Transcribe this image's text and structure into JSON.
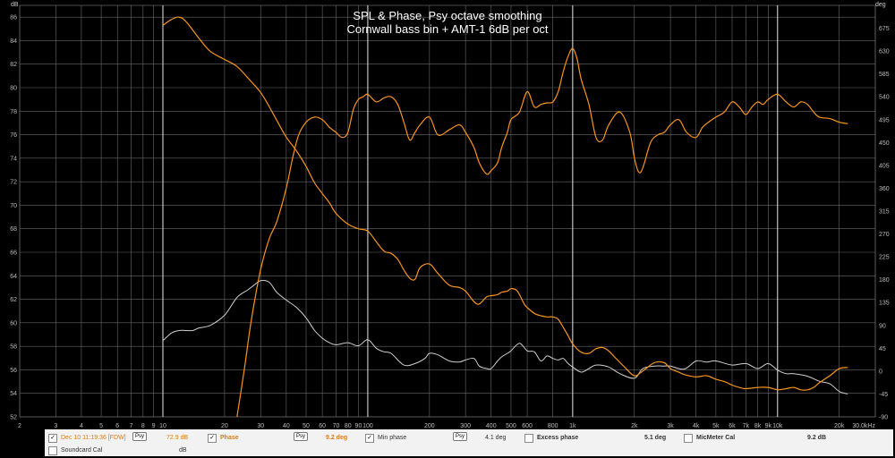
{
  "colors": {
    "spl": "#f7941d",
    "phase": "#f7941d",
    "min_phase": "#cfcfcf",
    "grid_major": "#e8e8e8",
    "grid_minor": "#6a6a6a",
    "bg": "#000000"
  },
  "chart_data": {
    "type": "line",
    "title": "SPL & Phase, Psy octave smoothing",
    "subtitle": "Cornwall bass bin + AMT-1 6dB per oct",
    "xlabel": "Hz",
    "ylabel_left": "dB",
    "ylabel_right": "deg",
    "x_scale": "log",
    "xlim": [
      2,
      30000
    ],
    "ylim_left": [
      52,
      87
    ],
    "ylim_right": [
      -90,
      720
    ],
    "x_ticks": [
      {
        "v": 2,
        "label": "2"
      },
      {
        "v": 3,
        "label": "3"
      },
      {
        "v": 4,
        "label": "4"
      },
      {
        "v": 5,
        "label": "5"
      },
      {
        "v": 6,
        "label": "6"
      },
      {
        "v": 7,
        "label": "7"
      },
      {
        "v": 8,
        "label": "8"
      },
      {
        "v": 9,
        "label": "9"
      },
      {
        "v": 10,
        "label": "10"
      },
      {
        "v": 20,
        "label": "20"
      },
      {
        "v": 30,
        "label": "30"
      },
      {
        "v": 40,
        "label": "40"
      },
      {
        "v": 50,
        "label": "50"
      },
      {
        "v": 60,
        "label": "60"
      },
      {
        "v": 70,
        "label": "70"
      },
      {
        "v": 80,
        "label": "80"
      },
      {
        "v": 90,
        "label": "90"
      },
      {
        "v": 100,
        "label": "100"
      },
      {
        "v": 200,
        "label": "200"
      },
      {
        "v": 300,
        "label": "300"
      },
      {
        "v": 400,
        "label": "400"
      },
      {
        "v": 500,
        "label": "500"
      },
      {
        "v": 600,
        "label": "600"
      },
      {
        "v": 800,
        "label": "800"
      },
      {
        "v": 1000,
        "label": "1k"
      },
      {
        "v": 2000,
        "label": "2k"
      },
      {
        "v": 3000,
        "label": "3k"
      },
      {
        "v": 4000,
        "label": "4k"
      },
      {
        "v": 5000,
        "label": "5k"
      },
      {
        "v": 6000,
        "label": "6k"
      },
      {
        "v": 7000,
        "label": "7k"
      },
      {
        "v": 8000,
        "label": "8k"
      },
      {
        "v": 9000,
        "label": "9k"
      },
      {
        "v": 10000,
        "label": "10k"
      },
      {
        "v": 20000,
        "label": "20k"
      },
      {
        "v": 30000,
        "label": "30.0kHz"
      }
    ],
    "y_ticks_left": [
      52,
      54,
      56,
      58,
      60,
      62,
      64,
      66,
      68,
      70,
      72,
      74,
      76,
      78,
      80,
      82,
      84,
      86
    ],
    "y_ticks_right": [
      -90,
      -45,
      0,
      45,
      90,
      135,
      180,
      225,
      270,
      315,
      360,
      405,
      450,
      495,
      540,
      585,
      630,
      675
    ],
    "series": [
      {
        "name": "SPL",
        "axis": "left",
        "color": "#f7941d",
        "x": [
          10,
          11,
          12,
          13,
          15,
          17,
          20,
          23,
          27,
          30,
          33,
          36,
          40,
          45,
          50,
          55,
          60,
          65,
          70,
          80,
          90,
          100,
          110,
          120,
          130,
          140,
          150,
          160,
          170,
          180,
          200,
          220,
          250,
          280,
          300,
          330,
          350,
          380,
          400,
          430,
          450,
          480,
          500,
          530,
          550,
          580,
          600,
          650,
          700,
          750,
          800,
          850,
          900,
          950,
          1000,
          1100,
          1200,
          1300,
          1400,
          1500,
          1600,
          1800,
          2000,
          2200,
          2500,
          2800,
          3000,
          3300,
          3500,
          4000,
          4500,
          5000,
          5500,
          6000,
          6500,
          7000,
          8000,
          9000,
          10000,
          11000,
          12000,
          13000,
          14000,
          15000,
          16000,
          18000,
          20000,
          22000
        ],
        "values": [
          85.3,
          85.8,
          86.0,
          85.6,
          84.2,
          83.1,
          82.4,
          81.8,
          80.5,
          79.6,
          78.4,
          77.2,
          75.8,
          74.6,
          73.3,
          71.9,
          71.0,
          70.2,
          69.3,
          68.4,
          68.0,
          67.8,
          66.9,
          66.1,
          65.9,
          65.4,
          64.5,
          63.8,
          63.7,
          64.7,
          65.0,
          64.2,
          63.2,
          63.0,
          62.7,
          61.8,
          61.6,
          62.2,
          62.3,
          62.4,
          62.6,
          62.7,
          62.9,
          62.8,
          62.4,
          61.6,
          61.3,
          60.8,
          60.6,
          60.5,
          60.5,
          60.3,
          59.6,
          58.9,
          58.2,
          57.5,
          57.4,
          57.8,
          57.9,
          57.6,
          57.1,
          56.2,
          55.5,
          55.9,
          56.6,
          56.6,
          56.1,
          55.8,
          55.6,
          55.4,
          55.5,
          55.2,
          55.0,
          54.7,
          54.5,
          54.4,
          54.5,
          54.5,
          54.3,
          54.4,
          54.5,
          54.3,
          54.3,
          54.5,
          54.9,
          55.5,
          56.1,
          56.2
        ]
      },
      {
        "name": "Phase",
        "axis": "right",
        "color": "#f7941d",
        "x": [
          23,
          25,
          27,
          30,
          33,
          36,
          40,
          43,
          46,
          50,
          55,
          60,
          65,
          70,
          75,
          80,
          85,
          90,
          95,
          100,
          110,
          120,
          130,
          140,
          150,
          160,
          170,
          180,
          200,
          220,
          250,
          280,
          300,
          330,
          350,
          380,
          400,
          430,
          450,
          480,
          500,
          550,
          600,
          650,
          700,
          750,
          800,
          850,
          900,
          950,
          1000,
          1050,
          1100,
          1200,
          1300,
          1400,
          1500,
          1700,
          1900,
          2000,
          2100,
          2200,
          2400,
          2600,
          2800,
          3000,
          3300,
          3600,
          4000,
          4300,
          4600,
          5000,
          5500,
          6000,
          6500,
          7000,
          7500,
          8000,
          8500,
          9000,
          10000,
          11000,
          12000,
          13000,
          14000,
          15000,
          16000,
          18000,
          20000,
          22000
        ],
        "values": [
          -90,
          5,
          100,
          200,
          260,
          295,
          360,
          420,
          465,
          490,
          500,
          495,
          480,
          470,
          460,
          470,
          515,
          535,
          540,
          545,
          530,
          538,
          540,
          525,
          490,
          455,
          470,
          485,
          500,
          465,
          475,
          485,
          470,
          440,
          410,
          388,
          395,
          410,
          440,
          470,
          495,
          510,
          550,
          520,
          525,
          528,
          530,
          550,
          590,
          620,
          635,
          615,
          575,
          525,
          460,
          455,
          485,
          510,
          470,
          420,
          392,
          400,
          450,
          465,
          470,
          485,
          495,
          470,
          460,
          480,
          490,
          500,
          510,
          530,
          520,
          505,
          520,
          530,
          525,
          535,
          545,
          530,
          520,
          530,
          525,
          510,
          500,
          497,
          490,
          487
        ]
      },
      {
        "name": "Min phase",
        "axis": "right",
        "color": "#cfcfcf",
        "x": [
          10,
          11,
          12,
          13,
          14,
          15,
          17,
          20,
          23,
          26,
          28,
          30,
          33,
          36,
          40,
          45,
          50,
          55,
          60,
          65,
          70,
          80,
          90,
          100,
          110,
          120,
          130,
          150,
          170,
          190,
          200,
          220,
          250,
          280,
          300,
          330,
          350,
          380,
          400,
          430,
          450,
          480,
          500,
          550,
          600,
          650,
          700,
          750,
          800,
          850,
          900,
          950,
          1000,
          1100,
          1200,
          1300,
          1500,
          1700,
          2000,
          2200,
          2500,
          2800,
          3000,
          3500,
          4000,
          4500,
          5000,
          6000,
          7000,
          8000,
          9000,
          10000,
          11000,
          12000,
          14000,
          16000,
          18000,
          20000,
          22000
        ],
        "values": [
          60,
          75,
          80,
          80,
          80,
          85,
          90,
          110,
          145,
          160,
          170,
          178,
          175,
          155,
          140,
          125,
          105,
          80,
          65,
          56,
          52,
          56,
          50,
          62,
          45,
          38,
          35,
          12,
          15,
          25,
          35,
          32,
          20,
          18,
          22,
          25,
          10,
          5,
          5,
          20,
          28,
          35,
          40,
          55,
          40,
          38,
          20,
          30,
          25,
          22,
          25,
          15,
          8,
          -2,
          5,
          12,
          8,
          -5,
          -14,
          5,
          10,
          10,
          10,
          4,
          20,
          18,
          20,
          12,
          15,
          5,
          15,
          2,
          -5,
          -5,
          -10,
          -20,
          -25,
          -40,
          -45
        ]
      }
    ],
    "legend": [
      {
        "label": "Dec 10 11:19:36 [FDW]",
        "value": "72.9 dB"
      },
      {
        "label": "Phase",
        "value": "9.2 deg"
      },
      {
        "label": "Min phase",
        "value": "4.1 deg"
      },
      {
        "label": "Excess phase",
        "value": "5.1 deg"
      },
      {
        "label": "MicMeter Cal",
        "value": "9.2 dB"
      },
      {
        "label": "Soundcard Cal",
        "value": "dB"
      }
    ],
    "psy_label": "Psy"
  }
}
